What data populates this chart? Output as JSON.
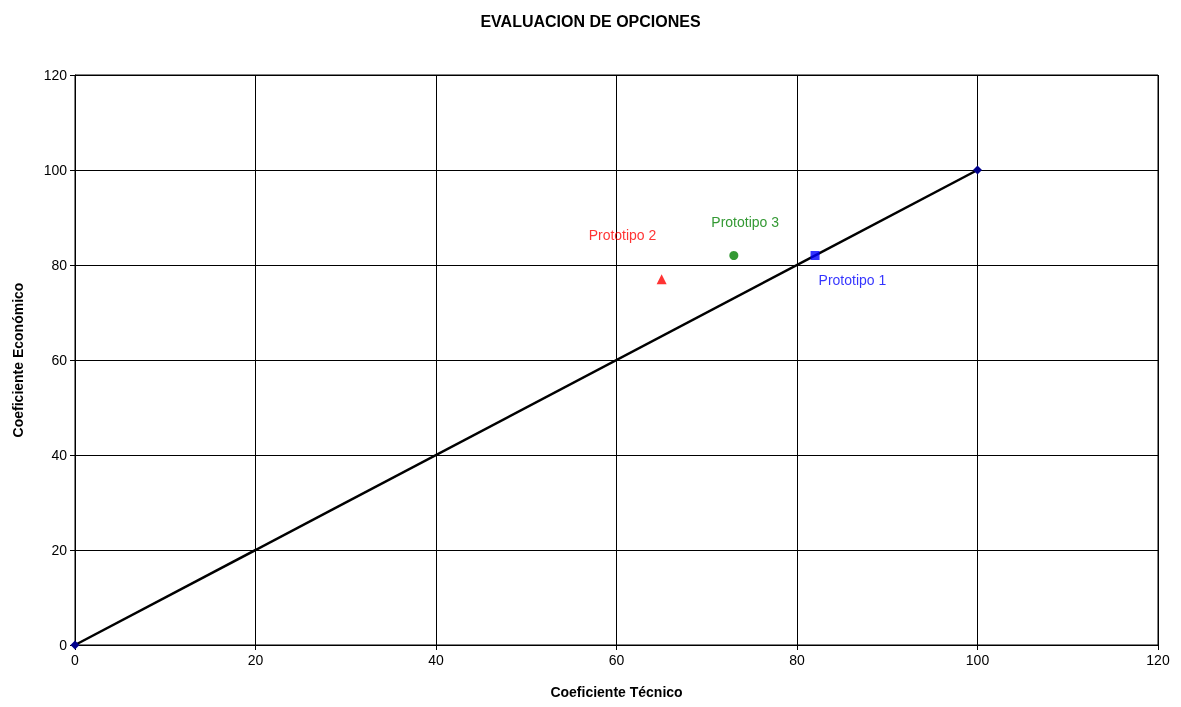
{
  "chart_data": {
    "type": "scatter",
    "title": "EVALUACION DE OPCIONES",
    "xlabel": "Coeficiente Técnico",
    "ylabel": "Coeficiente Económico",
    "xlim": [
      0,
      120
    ],
    "xticks": [
      0,
      20,
      40,
      60,
      80,
      100,
      120
    ],
    "ylim": [
      0,
      120
    ],
    "yticks": [
      0,
      20,
      40,
      60,
      80,
      100,
      120
    ],
    "grid": true,
    "legend": false,
    "series": [
      {
        "type": "line",
        "color": "#000000",
        "x": [
          0,
          100
        ],
        "values": [
          0,
          100
        ],
        "marker": "diamond"
      },
      {
        "name": "Prototipo 1",
        "color": "#0000ff",
        "x": [
          82
        ],
        "values": [
          82
        ],
        "marker": "square"
      },
      {
        "name": "Prototipo 2",
        "color": "#ff0000",
        "x": [
          65
        ],
        "values": [
          77
        ],
        "marker": "triangle"
      },
      {
        "name": "Prototipo 3",
        "color": "#008000",
        "x": [
          73
        ],
        "values": [
          82
        ],
        "marker": "circle"
      }
    ]
  }
}
